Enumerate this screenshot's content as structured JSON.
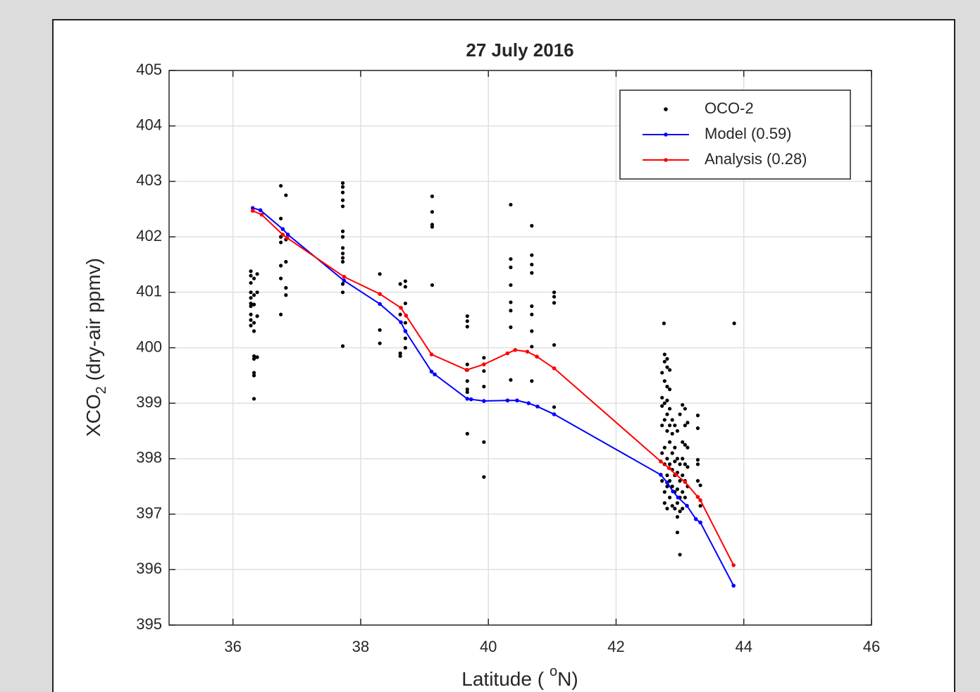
{
  "chart_data": {
    "type": "line",
    "title": "27 July 2016",
    "xlabel_parts": [
      "Latitude (",
      "o",
      "N)"
    ],
    "ylabel_parts": [
      "XCO",
      "2",
      " (dry-air ppmv)"
    ],
    "xlim": [
      35,
      46
    ],
    "xticks": [
      36,
      38,
      40,
      42,
      44,
      46
    ],
    "ylim": [
      395,
      405
    ],
    "yticks": [
      395,
      396,
      397,
      398,
      399,
      400,
      401,
      402,
      403,
      404,
      405
    ],
    "grid": true,
    "legend": "upper right",
    "series": [
      {
        "name": "OCO-2",
        "color": "#000000",
        "mode": "markers",
        "x": [
          36.28,
          36.28,
          36.28,
          36.28,
          36.28,
          36.28,
          36.28,
          36.28,
          36.28,
          36.28,
          36.33,
          36.33,
          36.33,
          36.33,
          36.33,
          36.33,
          36.33,
          36.33,
          36.33,
          36.33,
          36.38,
          36.38,
          36.38,
          36.38,
          36.75,
          36.75,
          36.75,
          36.75,
          36.75,
          36.75,
          36.75,
          36.83,
          36.83,
          36.83,
          36.83,
          36.83,
          37.72,
          37.72,
          37.72,
          37.72,
          37.72,
          37.72,
          37.72,
          37.72,
          37.72,
          37.72,
          37.72,
          37.72,
          37.72,
          37.72,
          38.3,
          38.3,
          38.3,
          38.62,
          38.62,
          38.62,
          38.62,
          38.7,
          38.7,
          38.7,
          38.7,
          38.7,
          38.7,
          38.7,
          39.12,
          39.12,
          39.12,
          39.12,
          39.12,
          39.67,
          39.67,
          39.67,
          39.67,
          39.67,
          39.67,
          39.67,
          39.67,
          39.67,
          39.93,
          39.93,
          39.93,
          39.93,
          39.93,
          40.35,
          40.35,
          40.35,
          40.35,
          40.35,
          40.35,
          40.35,
          40.35,
          40.68,
          40.68,
          40.68,
          40.68,
          40.68,
          40.68,
          40.68,
          40.68,
          40.68,
          41.03,
          41.03,
          41.03,
          41.03,
          41.03,
          42.75,
          43.85,
          42.72,
          42.72,
          42.72,
          42.72,
          42.72,
          42.72,
          42.76,
          42.76,
          42.76,
          42.76,
          42.76,
          42.76,
          42.76,
          42.76,
          42.76,
          42.8,
          42.8,
          42.8,
          42.8,
          42.8,
          42.8,
          42.8,
          42.8,
          42.8,
          42.8,
          42.84,
          42.84,
          42.84,
          42.84,
          42.84,
          42.84,
          42.84,
          42.84,
          42.88,
          42.88,
          42.88,
          42.88,
          42.88,
          42.88,
          42.92,
          42.92,
          42.92,
          42.92,
          42.92,
          42.92,
          42.96,
          42.96,
          42.96,
          42.96,
          42.96,
          42.96,
          42.96,
          43.0,
          43.0,
          43.0,
          43.0,
          43.0,
          43.0,
          43.04,
          43.04,
          43.04,
          43.04,
          43.04,
          43.04,
          43.08,
          43.08,
          43.08,
          43.08,
          43.08,
          43.08,
          43.12,
          43.12,
          43.12,
          43.12,
          43.28,
          43.28,
          43.28,
          43.28,
          43.28,
          43.32,
          43.32
        ],
        "values": [
          401.38,
          401.3,
          401.17,
          401.0,
          400.9,
          400.8,
          400.75,
          400.6,
          400.5,
          400.4,
          400.3,
          399.85,
          399.8,
          399.55,
          399.5,
          399.08,
          401.25,
          400.95,
          400.78,
          400.45,
          401.33,
          401.0,
          400.57,
          399.83,
          402.92,
          402.33,
          402.0,
          401.9,
          401.48,
          401.25,
          400.6,
          402.75,
          401.95,
          401.55,
          401.08,
          400.95,
          402.97,
          402.9,
          402.8,
          402.66,
          402.55,
          402.1,
          402.0,
          401.8,
          401.7,
          401.62,
          401.55,
          401.15,
          401.0,
          400.03,
          401.33,
          400.32,
          400.08,
          401.15,
          400.6,
          399.9,
          399.85,
          401.2,
          401.1,
          400.8,
          400.45,
          400.3,
          400.17,
          400.0,
          402.73,
          402.45,
          402.22,
          402.18,
          401.13,
          400.57,
          400.48,
          400.38,
          399.7,
          399.6,
          399.4,
          399.25,
          399.2,
          398.45,
          399.82,
          399.58,
          399.3,
          398.3,
          397.67,
          401.6,
          401.45,
          401.13,
          400.82,
          400.67,
          400.37,
          399.42,
          402.58,
          402.2,
          401.67,
          401.35,
          401.5,
          400.6,
          400.3,
          400.75,
          400.02,
          399.4,
          401.0,
          400.92,
          400.81,
          400.05,
          398.93,
          400.44,
          400.44,
          399.55,
          399.1,
          398.95,
          398.6,
          398.1,
          397.6,
          399.88,
          399.75,
          399.4,
          399.0,
          398.7,
          398.2,
          397.9,
          397.4,
          397.2,
          399.8,
          399.65,
          399.3,
          399.05,
          398.8,
          398.5,
          398.0,
          397.7,
          397.5,
          397.1,
          399.6,
          399.25,
          398.9,
          398.6,
          398.3,
          397.9,
          397.6,
          397.3,
          398.7,
          398.45,
          398.1,
          397.8,
          397.5,
          397.15,
          398.6,
          398.2,
          397.95,
          397.7,
          397.4,
          397.1,
          398.5,
          398.0,
          397.75,
          397.45,
          397.2,
          396.95,
          396.67,
          396.27,
          398.8,
          397.9,
          397.6,
          397.3,
          397.05,
          398.97,
          398.3,
          398.0,
          397.7,
          397.4,
          397.1,
          398.9,
          398.6,
          398.25,
          397.9,
          397.6,
          397.3,
          398.65,
          398.2,
          397.85,
          397.5,
          398.78,
          398.55,
          397.98,
          397.9,
          397.6,
          397.52,
          397.15
        ]
      },
      {
        "name": "Model (0.59)",
        "color": "#0000ff",
        "mode": "lines+markers",
        "x": [
          36.31,
          36.43,
          36.78,
          36.86,
          37.74,
          38.3,
          38.63,
          38.7,
          39.11,
          39.16,
          39.67,
          39.73,
          39.93,
          40.3,
          40.45,
          40.63,
          40.77,
          41.03,
          42.7,
          42.8,
          42.89,
          42.97,
          43.11,
          43.25,
          43.32,
          43.84
        ],
        "values": [
          402.52,
          402.48,
          402.14,
          402.04,
          401.21,
          400.79,
          400.46,
          400.3,
          399.57,
          399.52,
          399.08,
          399.07,
          399.04,
          399.05,
          399.05,
          399.0,
          398.94,
          398.8,
          397.71,
          397.57,
          397.41,
          397.3,
          397.15,
          396.91,
          396.85,
          395.71
        ]
      },
      {
        "name": "Analysis (0.28)",
        "color": "#ff0000",
        "mode": "lines+markers",
        "x": [
          36.31,
          36.45,
          36.78,
          36.85,
          37.74,
          38.3,
          38.63,
          38.71,
          39.11,
          39.66,
          39.93,
          40.3,
          40.42,
          40.61,
          40.76,
          41.03,
          42.7,
          42.83,
          42.94,
          43.08,
          43.28,
          43.32,
          43.84
        ],
        "values": [
          402.47,
          402.4,
          402.04,
          401.98,
          401.28,
          400.97,
          400.72,
          400.58,
          399.88,
          399.6,
          399.7,
          399.9,
          399.96,
          399.93,
          399.84,
          399.63,
          397.95,
          397.83,
          397.71,
          397.58,
          397.31,
          397.25,
          396.08
        ]
      }
    ]
  }
}
